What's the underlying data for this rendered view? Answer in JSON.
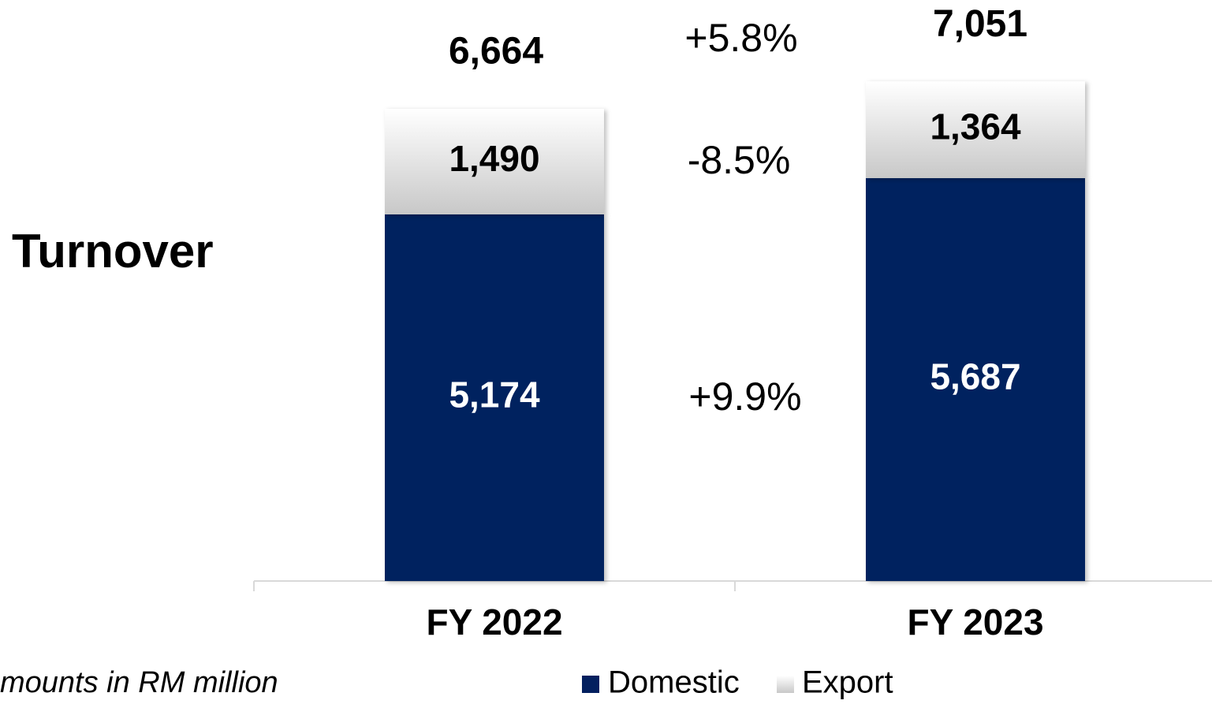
{
  "chart_data": {
    "type": "stacked_bar",
    "title": "Turnover",
    "categories": [
      "FY 2022",
      "FY 2023"
    ],
    "series": [
      {
        "name": "Domestic",
        "color": "#03205f",
        "values": [
          5174,
          5687
        ],
        "value_labels": [
          "5,174",
          "5,687"
        ]
      },
      {
        "name": "Export",
        "color": "#c8c8c8",
        "values": [
          1490,
          1364
        ],
        "value_labels": [
          "1,490",
          "1,364"
        ]
      }
    ],
    "totals": [
      6664,
      7051
    ],
    "total_labels": [
      "6,664",
      "7,051"
    ],
    "annotations": [
      "+5.8%",
      "-8.5%",
      "+9.9%"
    ],
    "note": "mounts in RM million",
    "ylim": [
      0,
      8200
    ]
  }
}
